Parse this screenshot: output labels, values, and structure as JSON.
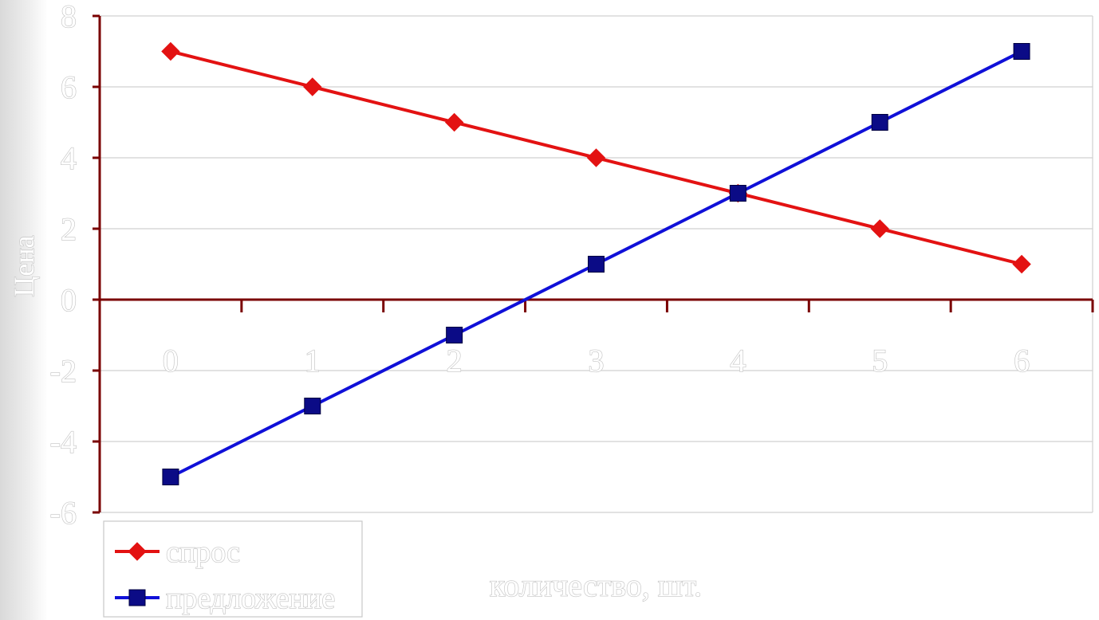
{
  "chart_data": {
    "type": "line",
    "categories": [
      "0",
      "1",
      "2",
      "3",
      "4",
      "5",
      "6"
    ],
    "series": [
      {
        "name": "спрос",
        "values": [
          7,
          6,
          5,
          4,
          3,
          2,
          1
        ],
        "color": "#e31212",
        "marker": "diamond"
      },
      {
        "name": "предложение",
        "values": [
          -5,
          -3,
          -1,
          1,
          3,
          5,
          7
        ],
        "color": "#1010d8",
        "marker": "square",
        "marker_color": "#0b0b86"
      }
    ],
    "title": "",
    "xlabel": "количество, шт.",
    "ylabel": "Цена",
    "ylim": [
      -6,
      8
    ],
    "yticks": [
      "-6",
      "-4",
      "-2",
      "0",
      "2",
      "4",
      "6",
      "8"
    ],
    "grid": true,
    "legend_position": "bottom-left",
    "axis_color": "#7a0000",
    "grid_color": "#d0d0d0"
  }
}
